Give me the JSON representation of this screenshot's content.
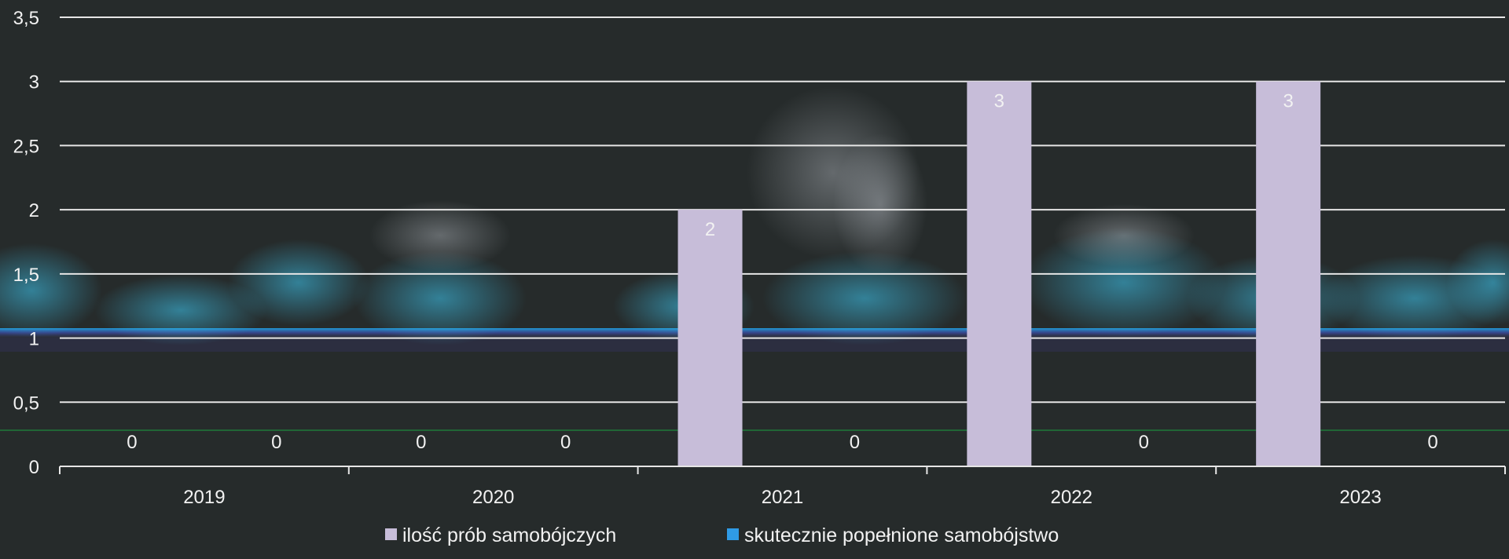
{
  "chart_data": {
    "type": "bar",
    "categories": [
      "2019",
      "2020",
      "2021",
      "2022",
      "2023"
    ],
    "series": [
      {
        "name": "ilość prób samobójczych",
        "values": [
          0,
          0,
          2,
          3,
          3
        ],
        "color": "#c7bdd9"
      },
      {
        "name": "skutecznie popełnione samobójstwo",
        "values": [
          0,
          0,
          0,
          0,
          0
        ],
        "color": "#2f9be6"
      }
    ],
    "ylim": [
      0,
      3.5
    ],
    "yticks": [
      "0",
      "0,5",
      "1",
      "1,5",
      "2",
      "2,5",
      "3",
      "3,5"
    ],
    "ytick_values": [
      0,
      0.5,
      1,
      1.5,
      2,
      2.5,
      3,
      3.5
    ],
    "grid": true,
    "legend_position": "bottom",
    "colors": {
      "background": "#262b2b",
      "text": "#f2f2f2",
      "grid": "#e6e6e6"
    }
  }
}
